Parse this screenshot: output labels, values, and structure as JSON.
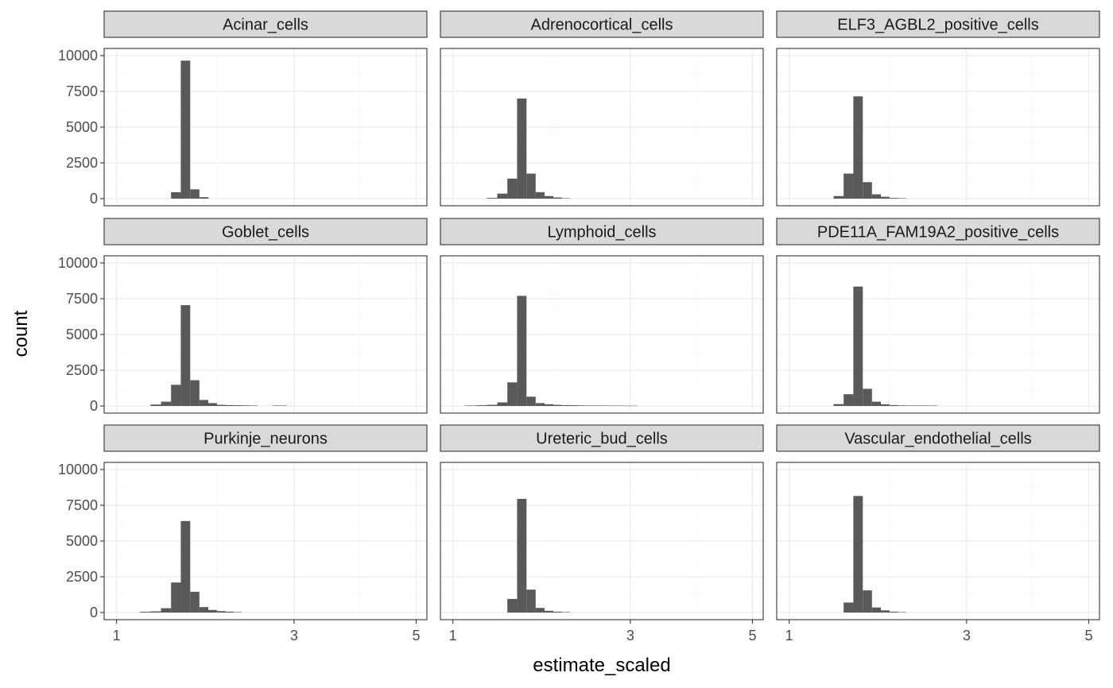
{
  "chart_data": {
    "type": "bar",
    "subtype": "histogram-facet-grid",
    "xlabel": "estimate_scaled",
    "ylabel": "count",
    "x_scale": "sqrt",
    "xlim": [
      0.9,
      5.2
    ],
    "x_ticks": [
      1,
      3,
      5
    ],
    "ylim": [
      -500,
      10500
    ],
    "y_ticks": [
      0,
      2500,
      5000,
      7500,
      10000
    ],
    "grid": true,
    "bar_color": "#595959",
    "strip_color": "#d9d9d9",
    "layout": {
      "rows": 3,
      "cols": 3
    },
    "facets": [
      {
        "name": "Acinar_cells",
        "bins": [
          [
            1.55,
            450
          ],
          [
            1.65,
            9650
          ],
          [
            1.75,
            650
          ],
          [
            1.85,
            100
          ]
        ]
      },
      {
        "name": "Adrenocortical_cells",
        "bins": [
          [
            1.35,
            50
          ],
          [
            1.45,
            350
          ],
          [
            1.55,
            1400
          ],
          [
            1.65,
            7000
          ],
          [
            1.75,
            1750
          ],
          [
            1.85,
            450
          ],
          [
            1.95,
            180
          ],
          [
            2.05,
            80
          ],
          [
            2.15,
            30
          ]
        ]
      },
      {
        "name": "ELF3_AGBL2_positive_cells",
        "bins": [
          [
            1.45,
            180
          ],
          [
            1.55,
            1750
          ],
          [
            1.65,
            7150
          ],
          [
            1.75,
            1150
          ],
          [
            1.85,
            300
          ],
          [
            1.95,
            130
          ],
          [
            2.05,
            50
          ],
          [
            2.15,
            30
          ]
        ]
      },
      {
        "name": "Goblet_cells",
        "bins": [
          [
            1.35,
            100
          ],
          [
            1.45,
            300
          ],
          [
            1.55,
            1480
          ],
          [
            1.65,
            7050
          ],
          [
            1.75,
            1800
          ],
          [
            1.85,
            420
          ],
          [
            1.95,
            200
          ],
          [
            2.05,
            80
          ],
          [
            2.15,
            60
          ],
          [
            2.25,
            50
          ],
          [
            2.35,
            40
          ],
          [
            2.45,
            30
          ],
          [
            2.75,
            30
          ],
          [
            2.85,
            30
          ]
        ]
      },
      {
        "name": "Lymphoid_cells",
        "bins": [
          [
            1.15,
            30
          ],
          [
            1.25,
            50
          ],
          [
            1.35,
            80
          ],
          [
            1.45,
            250
          ],
          [
            1.55,
            1650
          ],
          [
            1.65,
            7700
          ],
          [
            1.75,
            650
          ],
          [
            1.85,
            200
          ],
          [
            1.95,
            120
          ],
          [
            2.05,
            80
          ],
          [
            2.15,
            60
          ],
          [
            2.25,
            50
          ],
          [
            2.35,
            40
          ],
          [
            2.45,
            30
          ],
          [
            2.55,
            30
          ],
          [
            2.65,
            30
          ],
          [
            2.75,
            25
          ],
          [
            2.85,
            25
          ],
          [
            2.95,
            20
          ],
          [
            3.05,
            20
          ]
        ]
      },
      {
        "name": "PDE11A_FAM19A2_positive_cells",
        "bins": [
          [
            1.45,
            130
          ],
          [
            1.55,
            820
          ],
          [
            1.65,
            8350
          ],
          [
            1.75,
            1200
          ],
          [
            1.85,
            300
          ],
          [
            1.95,
            120
          ],
          [
            2.05,
            60
          ],
          [
            2.15,
            40
          ],
          [
            2.25,
            30
          ],
          [
            2.35,
            30
          ],
          [
            2.45,
            30
          ],
          [
            2.55,
            25
          ]
        ]
      },
      {
        "name": "Purkinje_neurons",
        "bins": [
          [
            1.25,
            50
          ],
          [
            1.35,
            80
          ],
          [
            1.45,
            300
          ],
          [
            1.55,
            2100
          ],
          [
            1.65,
            6400
          ],
          [
            1.75,
            1450
          ],
          [
            1.85,
            380
          ],
          [
            1.95,
            180
          ],
          [
            2.05,
            100
          ],
          [
            2.15,
            60
          ],
          [
            2.25,
            30
          ]
        ]
      },
      {
        "name": "Ureteric_bud_cells",
        "bins": [
          [
            1.55,
            950
          ],
          [
            1.65,
            7950
          ],
          [
            1.75,
            1600
          ],
          [
            1.85,
            320
          ],
          [
            1.95,
            120
          ],
          [
            2.05,
            60
          ],
          [
            2.15,
            30
          ]
        ]
      },
      {
        "name": "Vascular_endothelial_cells",
        "bins": [
          [
            1.55,
            700
          ],
          [
            1.65,
            8150
          ],
          [
            1.75,
            1550
          ],
          [
            1.85,
            350
          ],
          [
            1.95,
            150
          ],
          [
            2.05,
            60
          ],
          [
            2.15,
            30
          ]
        ]
      }
    ]
  }
}
